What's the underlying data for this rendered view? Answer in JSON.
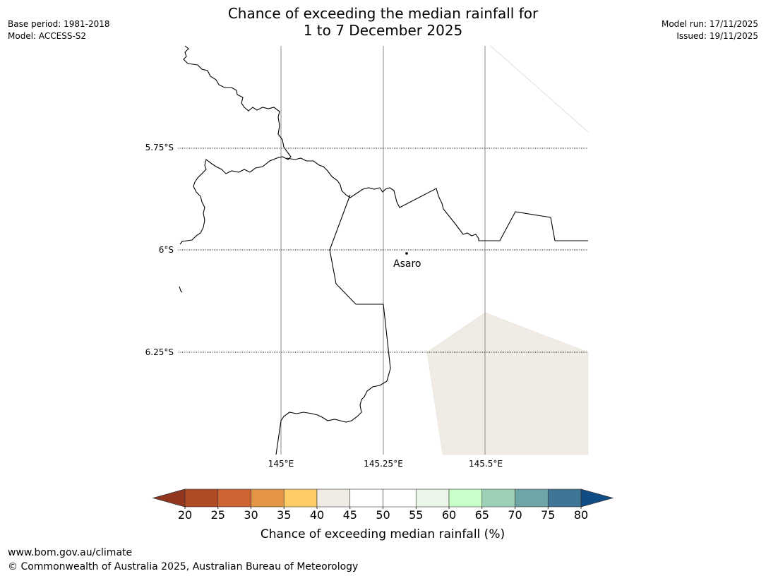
{
  "header": {
    "title_line1": "Chance of exceeding the median rainfall for",
    "title_line2": "1 to 7 December 2025",
    "base_period": "Base period: 1981-2018",
    "model": "Model: ACCESS-S2",
    "model_run": "Model run: 17/11/2025",
    "issued": "Issued: 19/11/2025"
  },
  "map": {
    "lat_labels": [
      "5.75°S",
      "6°S",
      "6.25°S"
    ],
    "lon_labels": [
      "145°E",
      "145.25°E",
      "145.5°E"
    ],
    "place": {
      "name": "Asaro"
    },
    "shaded_region_color": "#f0ebe4"
  },
  "colorbar": {
    "label": "Chance of exceeding median rainfall (%)",
    "ticks": [
      "20",
      "25",
      "30",
      "35",
      "40",
      "45",
      "50",
      "55",
      "60",
      "65",
      "70",
      "75",
      "80"
    ],
    "under_color": "#923620",
    "over_color": "#104c86",
    "colors": [
      "#b04a25",
      "#cf6432",
      "#e39545",
      "#fecb67",
      "#f0ebe4",
      "#ffffff",
      "#ffffff",
      "#eaf6e7",
      "#c9ffc9",
      "#9cd1b8",
      "#6ea6a8",
      "#3f7597"
    ]
  },
  "footer": {
    "url": "www.bom.gov.au/climate",
    "copyright": "© Commonwealth of Australia 2025, Australian Bureau of Meteorology"
  }
}
